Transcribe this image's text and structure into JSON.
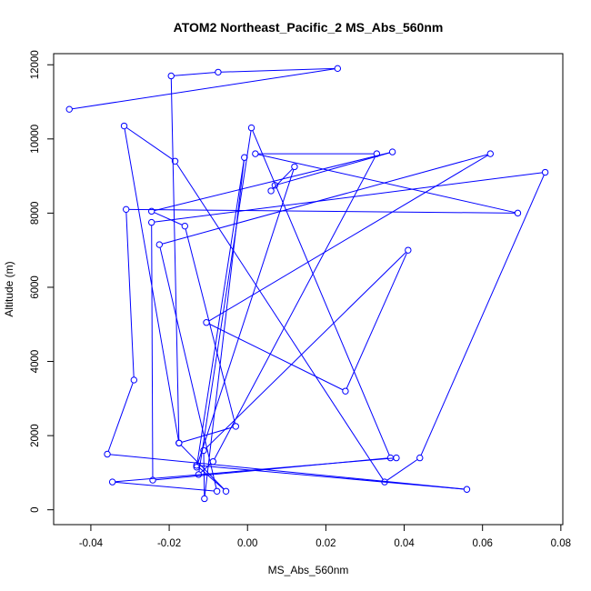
{
  "chart_data": {
    "type": "line",
    "title": "ATOM2 Northeast_Pacific_2 MS_Abs_560nm",
    "xlabel": "MS_Abs_560nm",
    "ylabel": "Altitude (m)",
    "xlim": [
      -0.0495,
      0.0805
    ],
    "ylim": [
      -400,
      12300
    ],
    "x_ticks": [
      -0.04,
      -0.02,
      0.0,
      0.02,
      0.04,
      0.06,
      0.08
    ],
    "x_tick_labels": [
      "-0.04",
      "-0.02",
      "0.00",
      "0.02",
      "0.04",
      "0.06",
      "0.08"
    ],
    "y_ticks": [
      0,
      2000,
      4000,
      6000,
      8000,
      10000,
      12000
    ],
    "y_tick_labels": [
      "0",
      "2000",
      "4000",
      "6000",
      "8000",
      "10000",
      "12000"
    ],
    "grid": false,
    "marker": "open-circle",
    "series_color": "#0000ff",
    "series": [
      {
        "points": [
          [
            -0.0455,
            10800
          ],
          [
            0.023,
            11900
          ],
          [
            -0.0075,
            11800
          ],
          [
            -0.0195,
            11700
          ],
          [
            -0.0175,
            1800
          ],
          [
            -0.0055,
            500
          ],
          [
            -0.013,
            1200
          ],
          [
            0.056,
            550
          ],
          [
            -0.0358,
            1500
          ],
          [
            -0.029,
            3500
          ],
          [
            -0.031,
            8100
          ],
          [
            0.069,
            8000
          ],
          [
            0.002,
            9600
          ],
          [
            0.033,
            9600
          ],
          [
            -0.0088,
            1300
          ],
          [
            -0.0125,
            950
          ],
          [
            0.001,
            10300
          ],
          [
            0.0365,
            1400
          ],
          [
            -0.0242,
            800
          ],
          [
            -0.0245,
            7750
          ],
          [
            0.076,
            9100
          ],
          [
            0.044,
            1400
          ],
          [
            0.035,
            750
          ],
          [
            -0.0185,
            9400
          ],
          [
            -0.0315,
            10350
          ],
          [
            -0.0175,
            1800
          ],
          [
            -0.003,
            2250
          ],
          [
            -0.016,
            7650
          ],
          [
            -0.0245,
            8050
          ],
          [
            0.037,
            9650
          ],
          [
            0.007,
            8750
          ],
          [
            0.006,
            8600
          ],
          [
            0.012,
            9250
          ],
          [
            -0.013,
            1150
          ],
          [
            -0.0008,
            9500
          ],
          [
            -0.011,
            300
          ],
          [
            -0.0112,
            1600
          ],
          [
            0.041,
            7000
          ],
          [
            0.025,
            3200
          ],
          [
            -0.0105,
            5050
          ],
          [
            0.062,
            9600
          ],
          [
            -0.0225,
            7150
          ],
          [
            -0.0078,
            500
          ],
          [
            -0.0345,
            750
          ],
          [
            0.038,
            1400
          ]
        ]
      }
    ]
  }
}
